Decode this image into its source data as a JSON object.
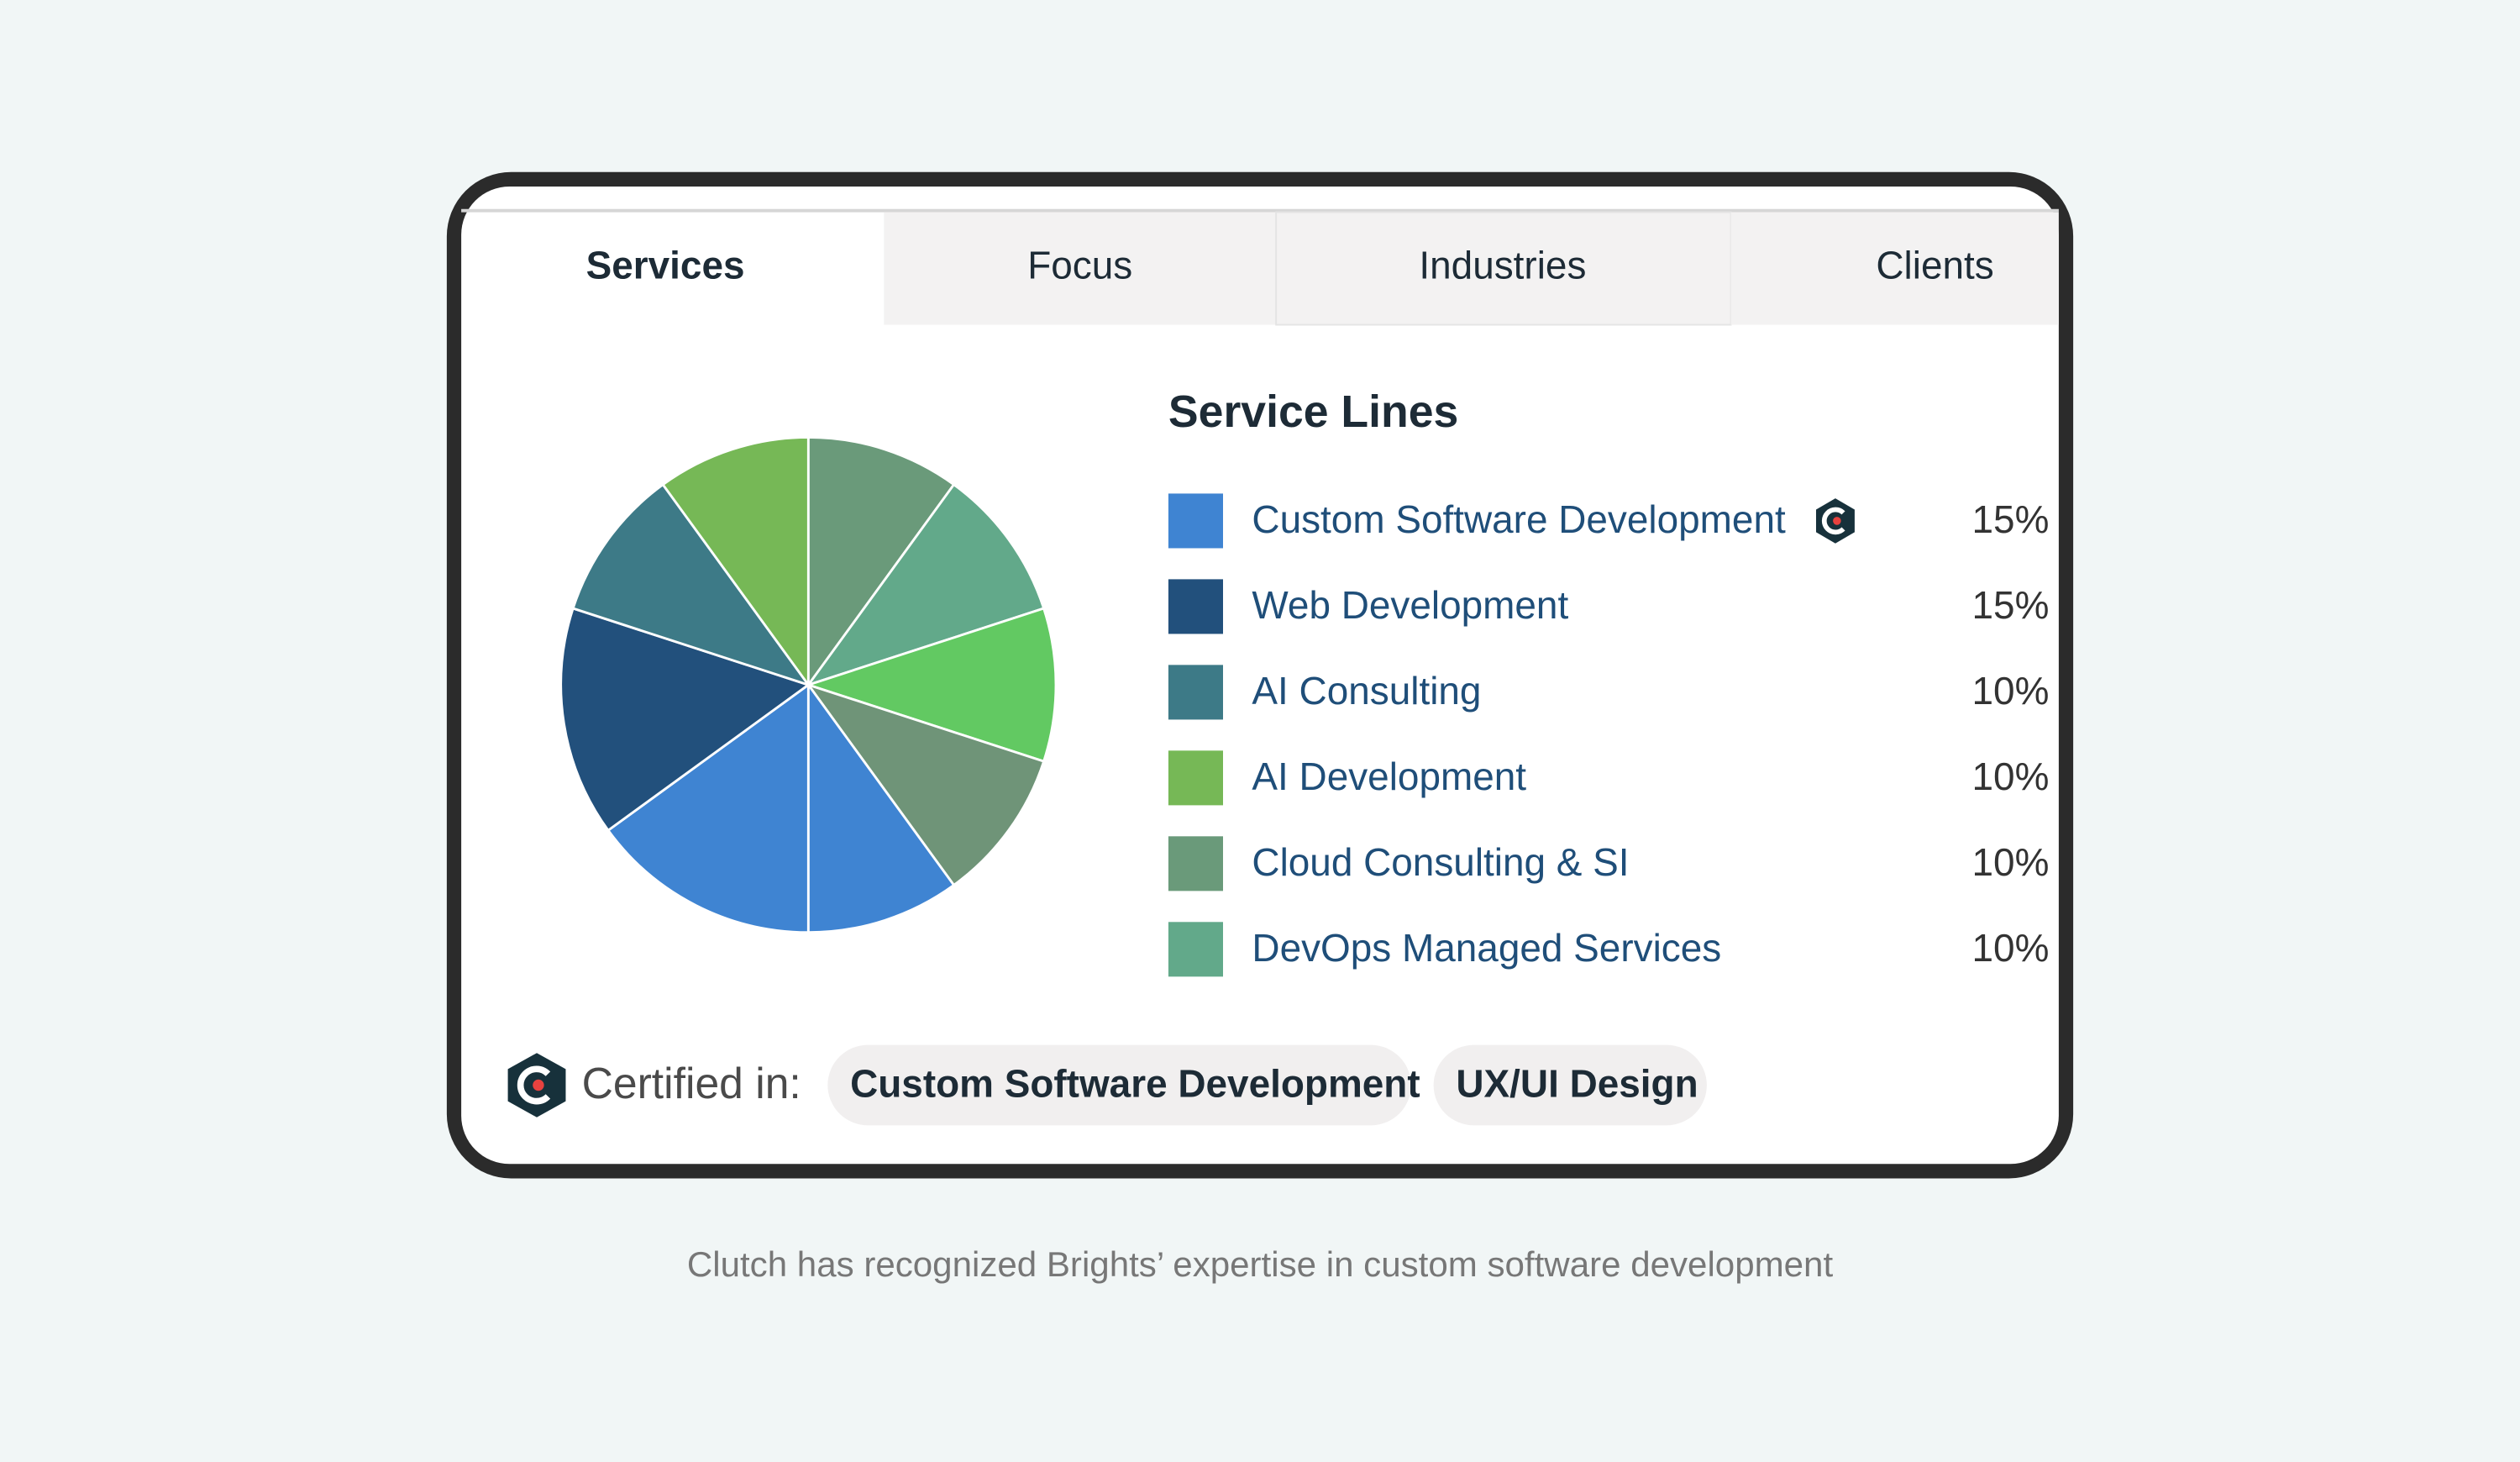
{
  "tabs": [
    "Services",
    "Focus",
    "Industries",
    "Clients"
  ],
  "chart_data": {
    "type": "pie",
    "title": "Service Lines",
    "categories": [
      "Custom Software Development",
      "Web Development",
      "AI Consulting",
      "AI Development",
      "Cloud Consulting & SI",
      "DevOps Managed Services",
      null,
      null,
      null
    ],
    "values": [
      15,
      15,
      10,
      10,
      10,
      10,
      10,
      10,
      10
    ],
    "value_labels": [
      "15%",
      "15%",
      "10%",
      "10%",
      "10%",
      "10%",
      null,
      null,
      null
    ],
    "colors": [
      "#3f84d2",
      "#22507c",
      "#3d7a87",
      "#76b856",
      "#6a9a7a",
      "#62a98a",
      "#62c962",
      "#6f9478",
      "#3f84d2"
    ]
  },
  "certified": {
    "label": "Certified in:",
    "items": [
      "Custom Software Development",
      "UX/UI Design"
    ]
  },
  "caption": "Clutch has recognized Brights’ expertise in custom software development"
}
